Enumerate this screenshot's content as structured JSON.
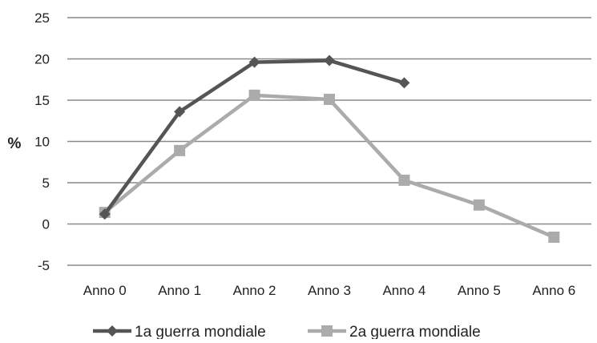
{
  "chart_data": {
    "type": "line",
    "title": "",
    "xlabel": "",
    "ylabel": "%",
    "categories": [
      "Anno 0",
      "Anno 1",
      "Anno 2",
      "Anno 3",
      "Anno 4",
      "Anno 5",
      "Anno 6"
    ],
    "ylim": [
      -5,
      25
    ],
    "yticks": [
      -5,
      0,
      5,
      10,
      15,
      20,
      25
    ],
    "grid": "horizontal",
    "legend_position": "bottom",
    "series": [
      {
        "name": "1a guerra mondiale",
        "values": [
          1.2,
          13.6,
          19.6,
          19.8,
          17.1,
          null,
          null
        ],
        "color": "#555555",
        "marker": "diamond"
      },
      {
        "name": "2a guerra mondiale",
        "values": [
          1.4,
          8.9,
          15.6,
          15.1,
          5.3,
          2.3,
          -1.6
        ],
        "color": "#ababab",
        "marker": "square"
      }
    ]
  }
}
